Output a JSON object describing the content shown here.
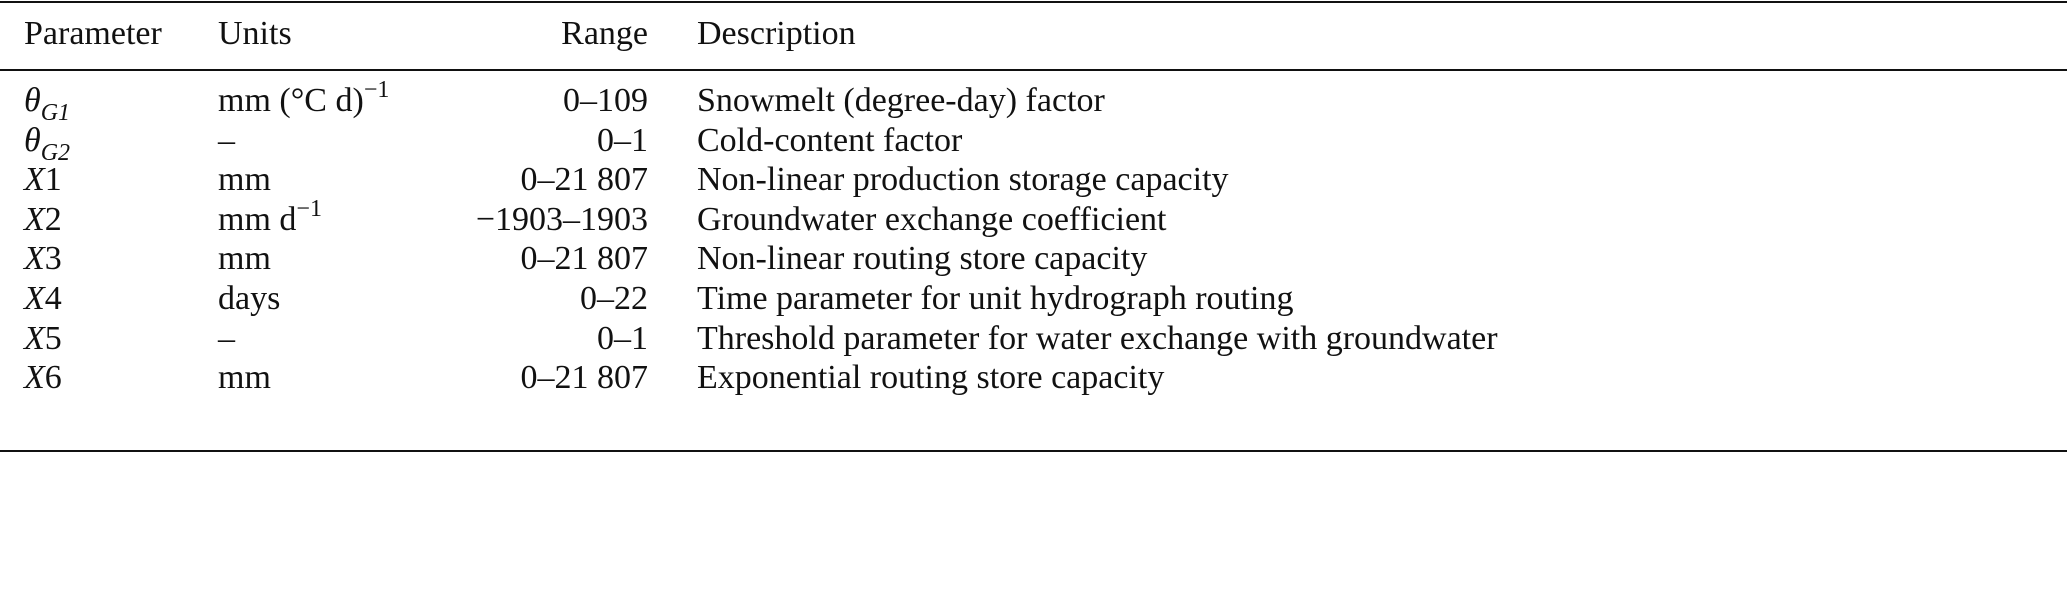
{
  "table": {
    "headers": [
      "Parameter",
      "Units",
      "Range",
      "Description"
    ],
    "rows": [
      {
        "sym": "θ",
        "sub": "G1",
        "num": "",
        "units": "mm (°C d)",
        "units_sup": "−1",
        "range": "0–109",
        "description": "Snowmelt (degree-day) factor"
      },
      {
        "sym": "θ",
        "sub": "G2",
        "num": "",
        "units": "–",
        "units_sup": "",
        "range": "0–1",
        "description": "Cold-content factor"
      },
      {
        "sym": "X",
        "sub": "",
        "num": "1",
        "units": "mm",
        "units_sup": "",
        "range": "0–21 807",
        "description": "Non-linear production storage capacity"
      },
      {
        "sym": "X",
        "sub": "",
        "num": "2",
        "units": "mm d",
        "units_sup": "−1",
        "range": "−1903–1903",
        "description": "Groundwater exchange coefficient"
      },
      {
        "sym": "X",
        "sub": "",
        "num": "3",
        "units": "mm",
        "units_sup": "",
        "range": "0–21 807",
        "description": "Non-linear routing store capacity"
      },
      {
        "sym": "X",
        "sub": "",
        "num": "4",
        "units": "days",
        "units_sup": "",
        "range": "0–22",
        "description": "Time parameter for unit hydrograph routing"
      },
      {
        "sym": "X",
        "sub": "",
        "num": "5",
        "units": "–",
        "units_sup": "",
        "range": "0–1",
        "description": "Threshold parameter for water exchange with groundwater"
      },
      {
        "sym": "X",
        "sub": "",
        "num": "6",
        "units": "mm",
        "units_sup": "",
        "range": "0–21 807",
        "description": "Exponential routing store capacity"
      }
    ]
  }
}
